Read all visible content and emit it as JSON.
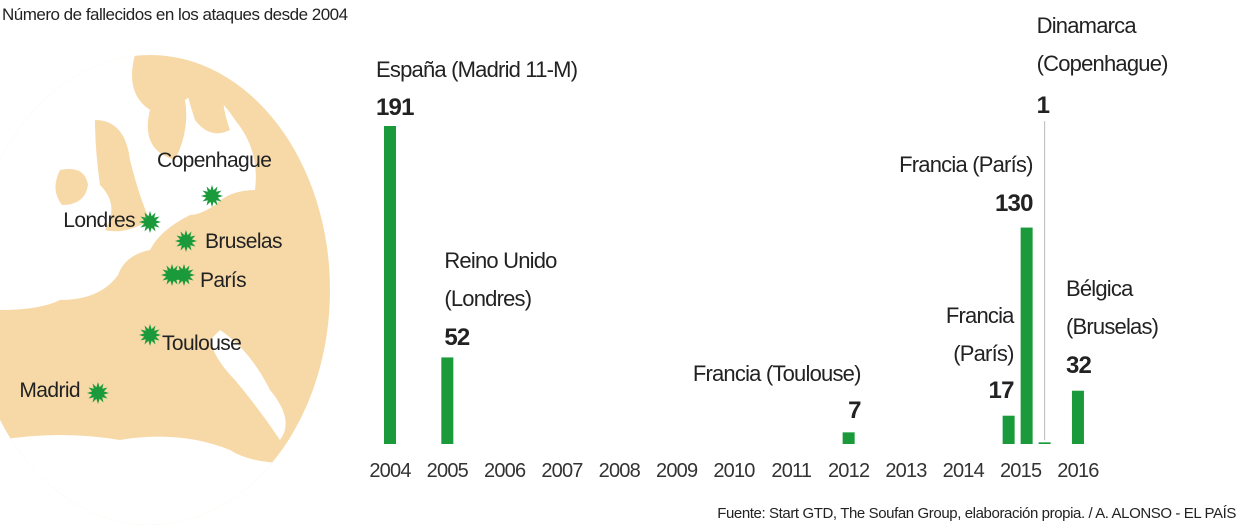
{
  "chart_data": {
    "type": "bar",
    "title": "Número de fallecidos en los ataques desde 2004",
    "categories": [
      "2004",
      "2005",
      "2006",
      "2007",
      "2008",
      "2009",
      "2010",
      "2011",
      "2012",
      "2013",
      "2014",
      "2015",
      "2016"
    ],
    "color": "#1a9a3a",
    "events": [
      {
        "year": "2004",
        "label": [
          "España (Madrid 11-M)"
        ],
        "value": 191
      },
      {
        "year": "2005",
        "label": [
          "Reino Unido",
          "(Londres)"
        ],
        "value": 52
      },
      {
        "year": "2012",
        "label": [
          "Francia (Toulouse)"
        ],
        "value": 7
      },
      {
        "year": "2015",
        "label": [
          "Francia",
          "(París)"
        ],
        "value": 17
      },
      {
        "year": "2015",
        "label": [
          "Francia (París)"
        ],
        "value": 130
      },
      {
        "year": "2015",
        "label": [
          "Dinamarca",
          "(Copenhague)"
        ],
        "value": 1
      },
      {
        "year": "2016",
        "label": [
          "Bélgica",
          "(Bruselas)"
        ],
        "value": 32
      }
    ],
    "map": {
      "cities": [
        "Copenhague",
        "Londres",
        "Bruselas",
        "París",
        "Toulouse",
        "Madrid"
      ]
    },
    "source": "Fuente: Start GTD, The Soufan Group, elaboración propia.  / A. ALONSO - EL PAÍS"
  }
}
